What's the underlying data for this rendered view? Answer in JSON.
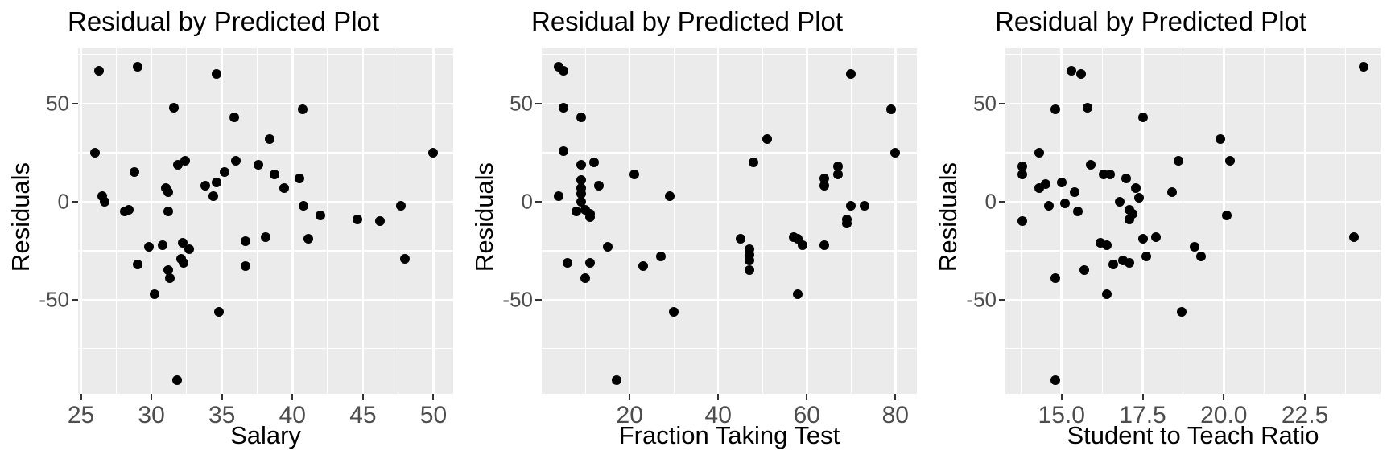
{
  "style": {
    "panel_bg": "#EBEBEB",
    "grid_color": "#FFFFFF",
    "point_color": "#000000",
    "tick_label_color": "#4D4D4D",
    "title_color": "#000000"
  },
  "chart_data": [
    {
      "type": "scatter",
      "title": "Residual by Predicted Plot",
      "xlabel": "Salary",
      "ylabel": "Residuals",
      "xlim": [
        24.8,
        51.4
      ],
      "ylim": [
        -98,
        78.3
      ],
      "grid": true,
      "legend": false,
      "x_ticks": {
        "values": [
          25,
          30,
          35,
          40,
          45,
          50
        ],
        "labels": [
          "25",
          "30",
          "35",
          "40",
          "45",
          "50"
        ]
      },
      "x_minor_ticks": [
        27.5,
        32.5,
        37.5,
        42.5,
        47.5
      ],
      "y_ticks": {
        "values": [
          50,
          0,
          -50
        ],
        "labels": [
          "50",
          "0",
          "-50"
        ]
      },
      "y_minor_ticks": [
        75,
        25,
        -25,
        -75
      ],
      "points": [
        [
          26.3,
          67
        ],
        [
          29.0,
          69
        ],
        [
          34.6,
          65
        ],
        [
          31.6,
          48
        ],
        [
          40.7,
          47
        ],
        [
          35.9,
          43
        ],
        [
          38.4,
          32
        ],
        [
          26.0,
          25
        ],
        [
          50.0,
          25
        ],
        [
          32.4,
          21
        ],
        [
          36.0,
          21
        ],
        [
          31.9,
          19
        ],
        [
          37.6,
          19
        ],
        [
          28.8,
          15
        ],
        [
          35.2,
          15
        ],
        [
          38.7,
          14
        ],
        [
          40.5,
          12
        ],
        [
          34.6,
          10
        ],
        [
          33.8,
          8
        ],
        [
          39.4,
          7
        ],
        [
          31.0,
          7
        ],
        [
          31.2,
          5
        ],
        [
          34.4,
          3
        ],
        [
          26.5,
          3
        ],
        [
          26.7,
          0
        ],
        [
          40.8,
          -2
        ],
        [
          47.7,
          -2
        ],
        [
          28.4,
          -4
        ],
        [
          28.1,
          -5
        ],
        [
          31.2,
          -5
        ],
        [
          42.0,
          -7
        ],
        [
          44.6,
          -9
        ],
        [
          46.2,
          -10
        ],
        [
          38.1,
          -18
        ],
        [
          41.1,
          -19
        ],
        [
          36.7,
          -20
        ],
        [
          32.2,
          -21
        ],
        [
          30.8,
          -22
        ],
        [
          29.8,
          -23
        ],
        [
          32.7,
          -24
        ],
        [
          48.0,
          -29
        ],
        [
          32.1,
          -29
        ],
        [
          32.3,
          -31
        ],
        [
          29.0,
          -32
        ],
        [
          36.7,
          -33
        ],
        [
          31.2,
          -35
        ],
        [
          31.3,
          -39
        ],
        [
          30.2,
          -47
        ],
        [
          34.8,
          -56
        ],
        [
          31.8,
          -91
        ]
      ]
    },
    {
      "type": "scatter",
      "title": "Residual by Predicted Plot",
      "xlabel": "Fraction Taking Test",
      "ylabel": "Residuals",
      "xlim": [
        0.15,
        84.85
      ],
      "ylim": [
        -98,
        78.3
      ],
      "grid": true,
      "legend": false,
      "x_ticks": {
        "values": [
          20,
          40,
          60,
          80
        ],
        "labels": [
          "20",
          "40",
          "60",
          "80"
        ]
      },
      "x_minor_ticks": [
        10,
        30,
        50,
        70
      ],
      "y_ticks": {
        "values": [
          50,
          0,
          -50
        ],
        "labels": [
          "50",
          "0",
          "-50"
        ]
      },
      "y_minor_ticks": [
        75,
        25,
        -25,
        -75
      ],
      "points": [
        [
          4,
          69
        ],
        [
          5,
          67
        ],
        [
          70,
          65
        ],
        [
          5,
          48
        ],
        [
          79,
          47
        ],
        [
          9,
          43
        ],
        [
          51,
          32
        ],
        [
          5,
          26
        ],
        [
          80,
          25
        ],
        [
          48,
          20
        ],
        [
          12,
          20
        ],
        [
          9,
          19
        ],
        [
          67,
          18
        ],
        [
          21,
          14
        ],
        [
          67,
          14
        ],
        [
          64,
          12
        ],
        [
          9,
          11
        ],
        [
          64,
          8
        ],
        [
          13,
          8
        ],
        [
          9,
          7
        ],
        [
          9,
          4
        ],
        [
          4,
          3
        ],
        [
          29,
          3
        ],
        [
          9,
          0
        ],
        [
          70,
          -2
        ],
        [
          73,
          -2
        ],
        [
          10,
          -4
        ],
        [
          8,
          -5
        ],
        [
          11,
          -6
        ],
        [
          11,
          -8
        ],
        [
          69,
          -9
        ],
        [
          69,
          -11
        ],
        [
          45,
          -19
        ],
        [
          57,
          -18
        ],
        [
          58,
          -19
        ],
        [
          59,
          -22
        ],
        [
          64,
          -22
        ],
        [
          15,
          -23
        ],
        [
          47,
          -24
        ],
        [
          47,
          -27
        ],
        [
          27,
          -28
        ],
        [
          6,
          -31
        ],
        [
          47,
          -30
        ],
        [
          11,
          -31
        ],
        [
          23,
          -33
        ],
        [
          47,
          -35
        ],
        [
          10,
          -39
        ],
        [
          58,
          -47
        ],
        [
          30,
          -56
        ],
        [
          17,
          -91
        ]
      ]
    },
    {
      "type": "scatter",
      "title": "Residual by Predicted Plot",
      "xlabel": "Student to Teach Ratio",
      "ylabel": "Residuals",
      "xlim": [
        13.27,
        24.83
      ],
      "ylim": [
        -98,
        78.3
      ],
      "grid": true,
      "legend": false,
      "x_ticks": {
        "values": [
          15.0,
          17.5,
          20.0,
          22.5
        ],
        "labels": [
          "15.0",
          "17.5",
          "20.0",
          "22.5"
        ]
      },
      "x_minor_ticks": [
        13.75,
        16.25,
        18.75,
        21.25,
        23.75
      ],
      "y_ticks": {
        "values": [
          50,
          0,
          -50
        ],
        "labels": [
          "50",
          "0",
          "-50"
        ]
      },
      "y_minor_ticks": [
        75,
        25,
        -25,
        -75
      ],
      "points": [
        [
          24.3,
          69
        ],
        [
          15.3,
          67
        ],
        [
          15.6,
          65
        ],
        [
          15.8,
          48
        ],
        [
          14.8,
          47
        ],
        [
          17.5,
          43
        ],
        [
          19.9,
          32
        ],
        [
          14.3,
          25
        ],
        [
          18.6,
          21
        ],
        [
          20.2,
          21
        ],
        [
          15.9,
          19
        ],
        [
          13.8,
          18
        ],
        [
          13.8,
          14
        ],
        [
          16.3,
          14
        ],
        [
          16.5,
          14
        ],
        [
          17.0,
          12
        ],
        [
          15.0,
          10
        ],
        [
          14.5,
          9
        ],
        [
          14.3,
          7
        ],
        [
          17.3,
          7
        ],
        [
          15.4,
          5
        ],
        [
          18.4,
          5
        ],
        [
          17.4,
          2
        ],
        [
          16.8,
          0
        ],
        [
          15.1,
          -1
        ],
        [
          14.6,
          -2
        ],
        [
          17.1,
          -4
        ],
        [
          15.5,
          -5
        ],
        [
          17.2,
          -6
        ],
        [
          20.1,
          -7
        ],
        [
          17.1,
          -9
        ],
        [
          13.8,
          -10
        ],
        [
          17.9,
          -18
        ],
        [
          24.0,
          -18
        ],
        [
          17.5,
          -19
        ],
        [
          16.2,
          -21
        ],
        [
          16.4,
          -22
        ],
        [
          19.1,
          -23
        ],
        [
          17.6,
          -28
        ],
        [
          19.3,
          -28
        ],
        [
          16.9,
          -30
        ],
        [
          17.1,
          -31
        ],
        [
          16.6,
          -32
        ],
        [
          15.7,
          -35
        ],
        [
          14.8,
          -39
        ],
        [
          16.4,
          -47
        ],
        [
          18.7,
          -56
        ],
        [
          14.8,
          -91
        ]
      ]
    }
  ]
}
